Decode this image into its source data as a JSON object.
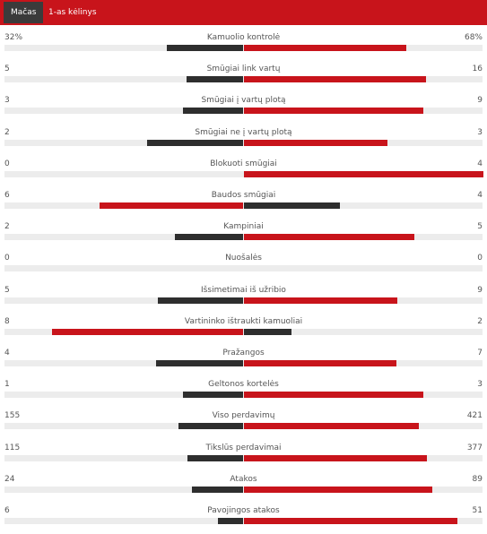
{
  "tabs": [
    "Mačas",
    "1-as kėlinys"
  ],
  "stats": [
    {
      "name": "Kamuolio kontrolė",
      "home": {
        "value": 32,
        "label": "32%"
      },
      "away": {
        "value": 68,
        "label": "68%"
      }
    },
    {
      "name": "Smūgiai link vartų",
      "home": 5,
      "away": 16
    },
    {
      "name": "Smūgiai į vartų plotą",
      "home": 3,
      "away": 9
    },
    {
      "name": "Smūgiai ne į vartų plotą",
      "home": 2,
      "away": 3
    },
    {
      "name": "Blokuoti smūgiai",
      "home": 0,
      "away": 4
    },
    {
      "name": "Baudos smūgiai",
      "home": 6,
      "away": 4
    },
    {
      "name": "Kampiniai",
      "home": 2,
      "away": 5
    },
    {
      "name": "Nuošalės",
      "home": 0,
      "away": 0
    },
    {
      "name": "Išsimetimai iš užribio",
      "home": 5,
      "away": 9
    },
    {
      "name": "Vartininko ištraukti kamuoliai",
      "home": 8,
      "away": 2
    },
    {
      "name": "Pražangos",
      "home": 4,
      "away": 7
    },
    {
      "name": "Geltonos kortelės",
      "home": 1,
      "away": 3
    },
    {
      "name": "Viso perdavimų",
      "home": 155,
      "away": 421
    },
    {
      "name": "Tikslūs perdavimai",
      "home": 115,
      "away": 377
    },
    {
      "name": "Atakos",
      "home": 24,
      "away": 89
    },
    {
      "name": "Pavojingos atakos",
      "home": 6,
      "away": 51
    }
  ]
}
